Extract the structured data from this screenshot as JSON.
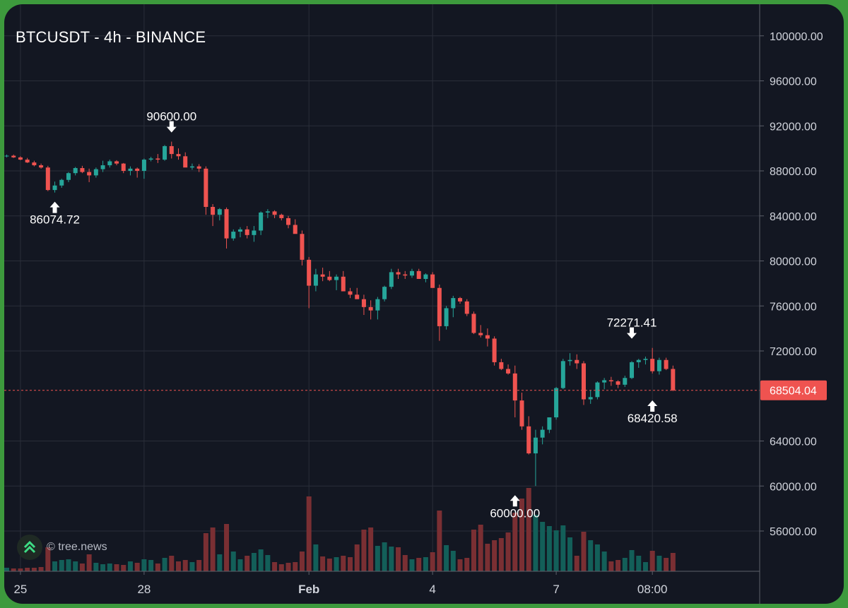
{
  "header": {
    "title": "BTCUSDT - 4h - BINANCE"
  },
  "watermark": {
    "text": "© tree.news",
    "icon": "double-chevron-up-icon"
  },
  "colors": {
    "up": "#26a69a",
    "down": "#ef5350",
    "background": "#131722",
    "grid": "#2a2e39",
    "price_label": "#ef5350"
  },
  "chart_data": {
    "type": "candlestick",
    "symbol": "BTCUSDT",
    "interval": "4h",
    "exchange": "BINANCE",
    "ylim": [
      52000,
      102000
    ],
    "y_ticks": [
      "100000.00",
      "96000.00",
      "92000.00",
      "88000.00",
      "84000.00",
      "80000.00",
      "76000.00",
      "72000.00",
      "64000.00",
      "60000.00",
      "56000.00"
    ],
    "x_ticks": [
      {
        "label": "25",
        "index": 2,
        "bold": false
      },
      {
        "label": "28",
        "index": 20,
        "bold": false
      },
      {
        "label": "Feb",
        "index": 44,
        "bold": true
      },
      {
        "label": "4",
        "index": 62,
        "bold": false
      },
      {
        "label": "7",
        "index": 80,
        "bold": false
      },
      {
        "label": "08:00",
        "index": 94,
        "bold": false
      }
    ],
    "current_price": "68504.04",
    "annotations": [
      {
        "text": "90600.00",
        "index": 24,
        "price": 90600,
        "position": "above"
      },
      {
        "text": "86074.72",
        "index": 7,
        "price": 86074.72,
        "position": "below"
      },
      {
        "text": "72271.41",
        "index": 91,
        "price": 72271.41,
        "position": "above"
      },
      {
        "text": "68420.58",
        "index": 94,
        "price": 68420.58,
        "position": "below"
      },
      {
        "text": "60000.00",
        "index": 74,
        "price": 60000,
        "position": "below"
      }
    ],
    "candles": [
      [
        89300,
        89450,
        89200,
        89350,
        5
      ],
      [
        89350,
        89450,
        89150,
        89200,
        4
      ],
      [
        89200,
        89300,
        88950,
        89000,
        4
      ],
      [
        89000,
        89150,
        88700,
        88750,
        5
      ],
      [
        88750,
        88900,
        88400,
        88500,
        5
      ],
      [
        88500,
        88650,
        88200,
        88300,
        6
      ],
      [
        88300,
        88450,
        86200,
        86300,
        34
      ],
      [
        86300,
        87050,
        86074.72,
        86700,
        14
      ],
      [
        86700,
        87300,
        86500,
        87200,
        16
      ],
      [
        87200,
        87900,
        87000,
        87800,
        17
      ],
      [
        87800,
        88350,
        87600,
        88250,
        14
      ],
      [
        88250,
        88450,
        87800,
        87900,
        11
      ],
      [
        87900,
        88200,
        87000,
        87600,
        24
      ],
      [
        87600,
        88300,
        87400,
        88150,
        12
      ],
      [
        88150,
        88900,
        87900,
        88500,
        10
      ],
      [
        88500,
        89000,
        88300,
        88850,
        11
      ],
      [
        88850,
        88950,
        88500,
        88650,
        10
      ],
      [
        88650,
        88700,
        87800,
        88000,
        9
      ],
      [
        88000,
        88400,
        87600,
        88200,
        14
      ],
      [
        88200,
        88300,
        87400,
        88000,
        12
      ],
      [
        88000,
        89100,
        87300,
        89000,
        17
      ],
      [
        89000,
        89250,
        88850,
        89100,
        16
      ],
      [
        89100,
        89500,
        88700,
        89000,
        11
      ],
      [
        89000,
        90300,
        88900,
        90200,
        19
      ],
      [
        90200,
        90600,
        89100,
        89500,
        22
      ],
      [
        89500,
        90000,
        89000,
        89300,
        14
      ],
      [
        89300,
        89650,
        88400,
        88300,
        16
      ],
      [
        88300,
        88650,
        88100,
        88400,
        13
      ],
      [
        88400,
        88600,
        87900,
        88200,
        16
      ],
      [
        88200,
        88400,
        84100,
        84800,
        54
      ],
      [
        84800,
        85050,
        83100,
        84100,
        62
      ],
      [
        84100,
        84700,
        83600,
        84600,
        24
      ],
      [
        84600,
        84750,
        81100,
        82000,
        67
      ],
      [
        82000,
        82800,
        81800,
        82600,
        28
      ],
      [
        82600,
        83000,
        82100,
        82800,
        17
      ],
      [
        82800,
        83100,
        82000,
        82300,
        22
      ],
      [
        82300,
        83100,
        81700,
        82700,
        26
      ],
      [
        82700,
        84400,
        82300,
        84300,
        31
      ],
      [
        84300,
        84600,
        83800,
        84400,
        23
      ],
      [
        84400,
        84500,
        83800,
        84100,
        13
      ],
      [
        84100,
        84200,
        83600,
        83800,
        10
      ],
      [
        83800,
        84000,
        82900,
        83200,
        12
      ],
      [
        83200,
        83700,
        82700,
        82400,
        13
      ],
      [
        82400,
        82700,
        79600,
        80100,
        28
      ],
      [
        80100,
        80350,
        75800,
        77800,
        106
      ],
      [
        77800,
        79300,
        77300,
        78800,
        38
      ],
      [
        78800,
        79400,
        78200,
        78600,
        21
      ],
      [
        78600,
        79100,
        78200,
        78300,
        18
      ],
      [
        78300,
        78800,
        77400,
        78600,
        20
      ],
      [
        78600,
        79100,
        77800,
        77300,
        22
      ],
      [
        77300,
        77600,
        76700,
        77000,
        20
      ],
      [
        77000,
        77600,
        76800,
        76600,
        38
      ],
      [
        76600,
        77000,
        75200,
        75900,
        59
      ],
      [
        75900,
        76500,
        74800,
        75600,
        62
      ],
      [
        75600,
        76800,
        74800,
        76600,
        36
      ],
      [
        76600,
        77800,
        76400,
        77700,
        41
      ],
      [
        77700,
        79300,
        77500,
        79000,
        35
      ],
      [
        79000,
        79300,
        78400,
        78800,
        34
      ],
      [
        78800,
        79100,
        78400,
        78700,
        23
      ],
      [
        78700,
        79300,
        78500,
        79100,
        17
      ],
      [
        79100,
        79300,
        78500,
        78400,
        19
      ],
      [
        78400,
        78900,
        78100,
        78800,
        20
      ],
      [
        78800,
        79000,
        77600,
        77600,
        27
      ],
      [
        77600,
        77900,
        72900,
        74200,
        86
      ],
      [
        74200,
        76000,
        73900,
        75800,
        37
      ],
      [
        75800,
        76900,
        75000,
        76700,
        29
      ],
      [
        76700,
        76800,
        76200,
        76400,
        17
      ],
      [
        76400,
        76600,
        75100,
        75300,
        19
      ],
      [
        75300,
        75500,
        73500,
        73600,
        59
      ],
      [
        73600,
        74300,
        73200,
        73400,
        66
      ],
      [
        73400,
        74000,
        72400,
        73100,
        39
      ],
      [
        73100,
        73300,
        70700,
        71000,
        44
      ],
      [
        71000,
        71300,
        70300,
        70400,
        47
      ],
      [
        70400,
        70800,
        69900,
        70000,
        55
      ],
      [
        70000,
        70700,
        66100,
        67600,
        83
      ],
      [
        67600,
        68300,
        65000,
        65300,
        103
      ],
      [
        65300,
        66200,
        62800,
        62900,
        118
      ],
      [
        62900,
        65000,
        60000,
        64300,
        80
      ],
      [
        64300,
        65300,
        63700,
        65000,
        70
      ],
      [
        65000,
        66100,
        64700,
        66100,
        64
      ],
      [
        66100,
        68800,
        65900,
        68700,
        58
      ],
      [
        68700,
        71300,
        68600,
        71100,
        65
      ],
      [
        71100,
        71800,
        70700,
        71200,
        48
      ],
      [
        71200,
        71700,
        70400,
        70900,
        22
      ],
      [
        70900,
        71100,
        67200,
        67700,
        56
      ],
      [
        67700,
        68500,
        67300,
        67900,
        44
      ],
      [
        67900,
        69300,
        67700,
        69200,
        38
      ],
      [
        69200,
        69600,
        68600,
        69400,
        28
      ],
      [
        69400,
        69700,
        68900,
        69300,
        14
      ],
      [
        69300,
        69400,
        68700,
        69000,
        16
      ],
      [
        69000,
        69800,
        68800,
        69600,
        19
      ],
      [
        69600,
        71100,
        69500,
        71000,
        30
      ],
      [
        71000,
        71300,
        70500,
        71200,
        22
      ],
      [
        71200,
        71500,
        70800,
        71300,
        13
      ],
      [
        71300,
        72271.41,
        70000,
        70200,
        29
      ],
      [
        70200,
        71400,
        69900,
        71200,
        22
      ],
      [
        71200,
        71400,
        70300,
        70400,
        19
      ],
      [
        70400,
        70700,
        68420.58,
        68504.04,
        26
      ]
    ]
  }
}
